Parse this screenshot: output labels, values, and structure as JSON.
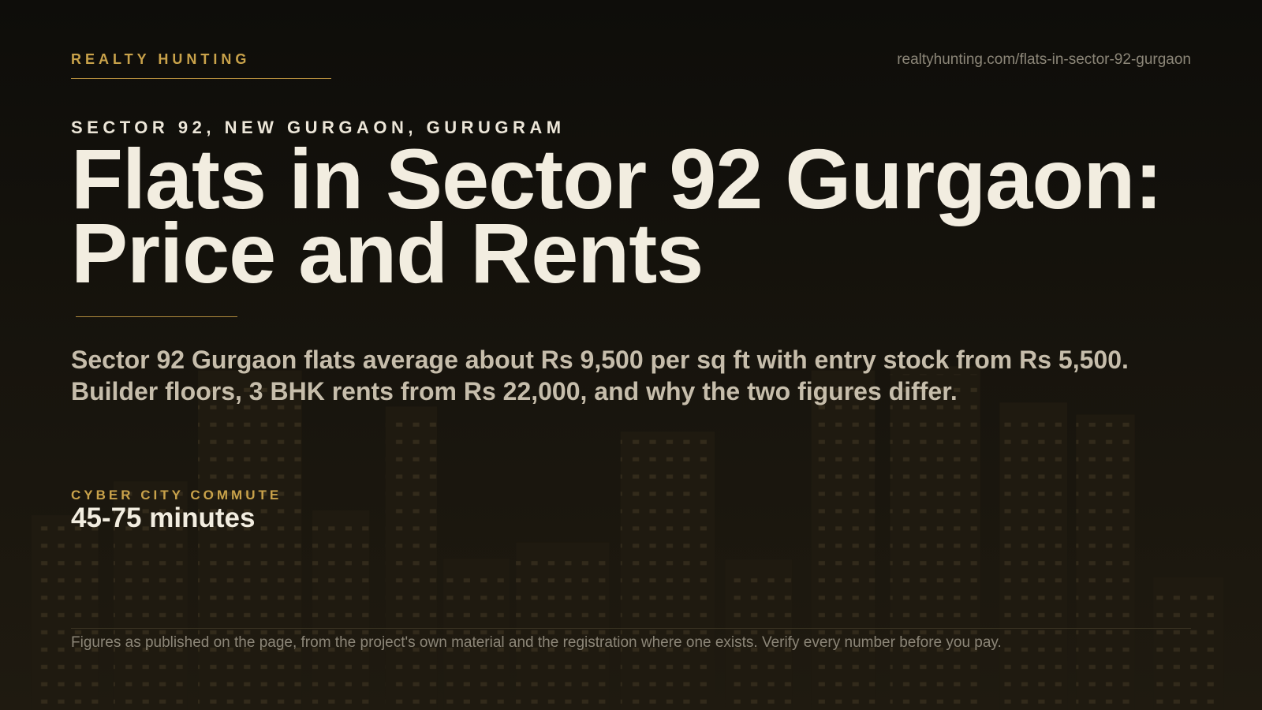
{
  "header": {
    "brand": "REALTY HUNTING",
    "url": "realtyhunting.com/flats-in-sector-92-gurgaon"
  },
  "hero": {
    "location": "SECTOR 92, NEW GURGAON, GURUGRAM",
    "title": "Flats in Sector 92 Gurgaon: Price and Rents",
    "summary": "Sector 92 Gurgaon flats average about Rs 9,500 per sq ft with entry stock from Rs 5,500. Builder floors, 3 BHK rents from Rs 22,000, and why the two figures differ."
  },
  "stat": {
    "label": "CYBER CITY COMMUTE",
    "value": "45-75 minutes"
  },
  "footer": {
    "note": "Figures as published on the page, from the project's own material and the registration where one exists. Verify every number before you pay."
  }
}
